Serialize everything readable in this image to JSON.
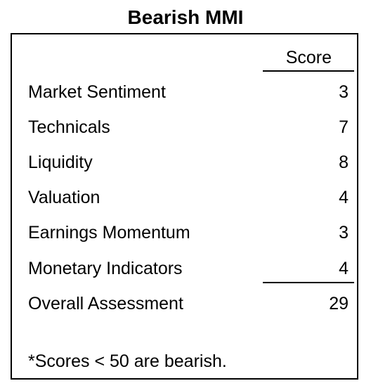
{
  "title": "Bearish MMI",
  "table": {
    "score_header": "Score",
    "rows": [
      {
        "label": "Market Sentiment",
        "score": "3"
      },
      {
        "label": "Technicals",
        "score": "7"
      },
      {
        "label": "Liquidity",
        "score": "8"
      },
      {
        "label": "Valuation",
        "score": "4"
      },
      {
        "label": "Earnings Momentum",
        "score": "3"
      },
      {
        "label": "Monetary Indicators",
        "score": "4"
      }
    ],
    "total": {
      "label": "Overall Assessment",
      "score": "29"
    }
  },
  "footnote": "*Scores < 50 are bearish."
}
